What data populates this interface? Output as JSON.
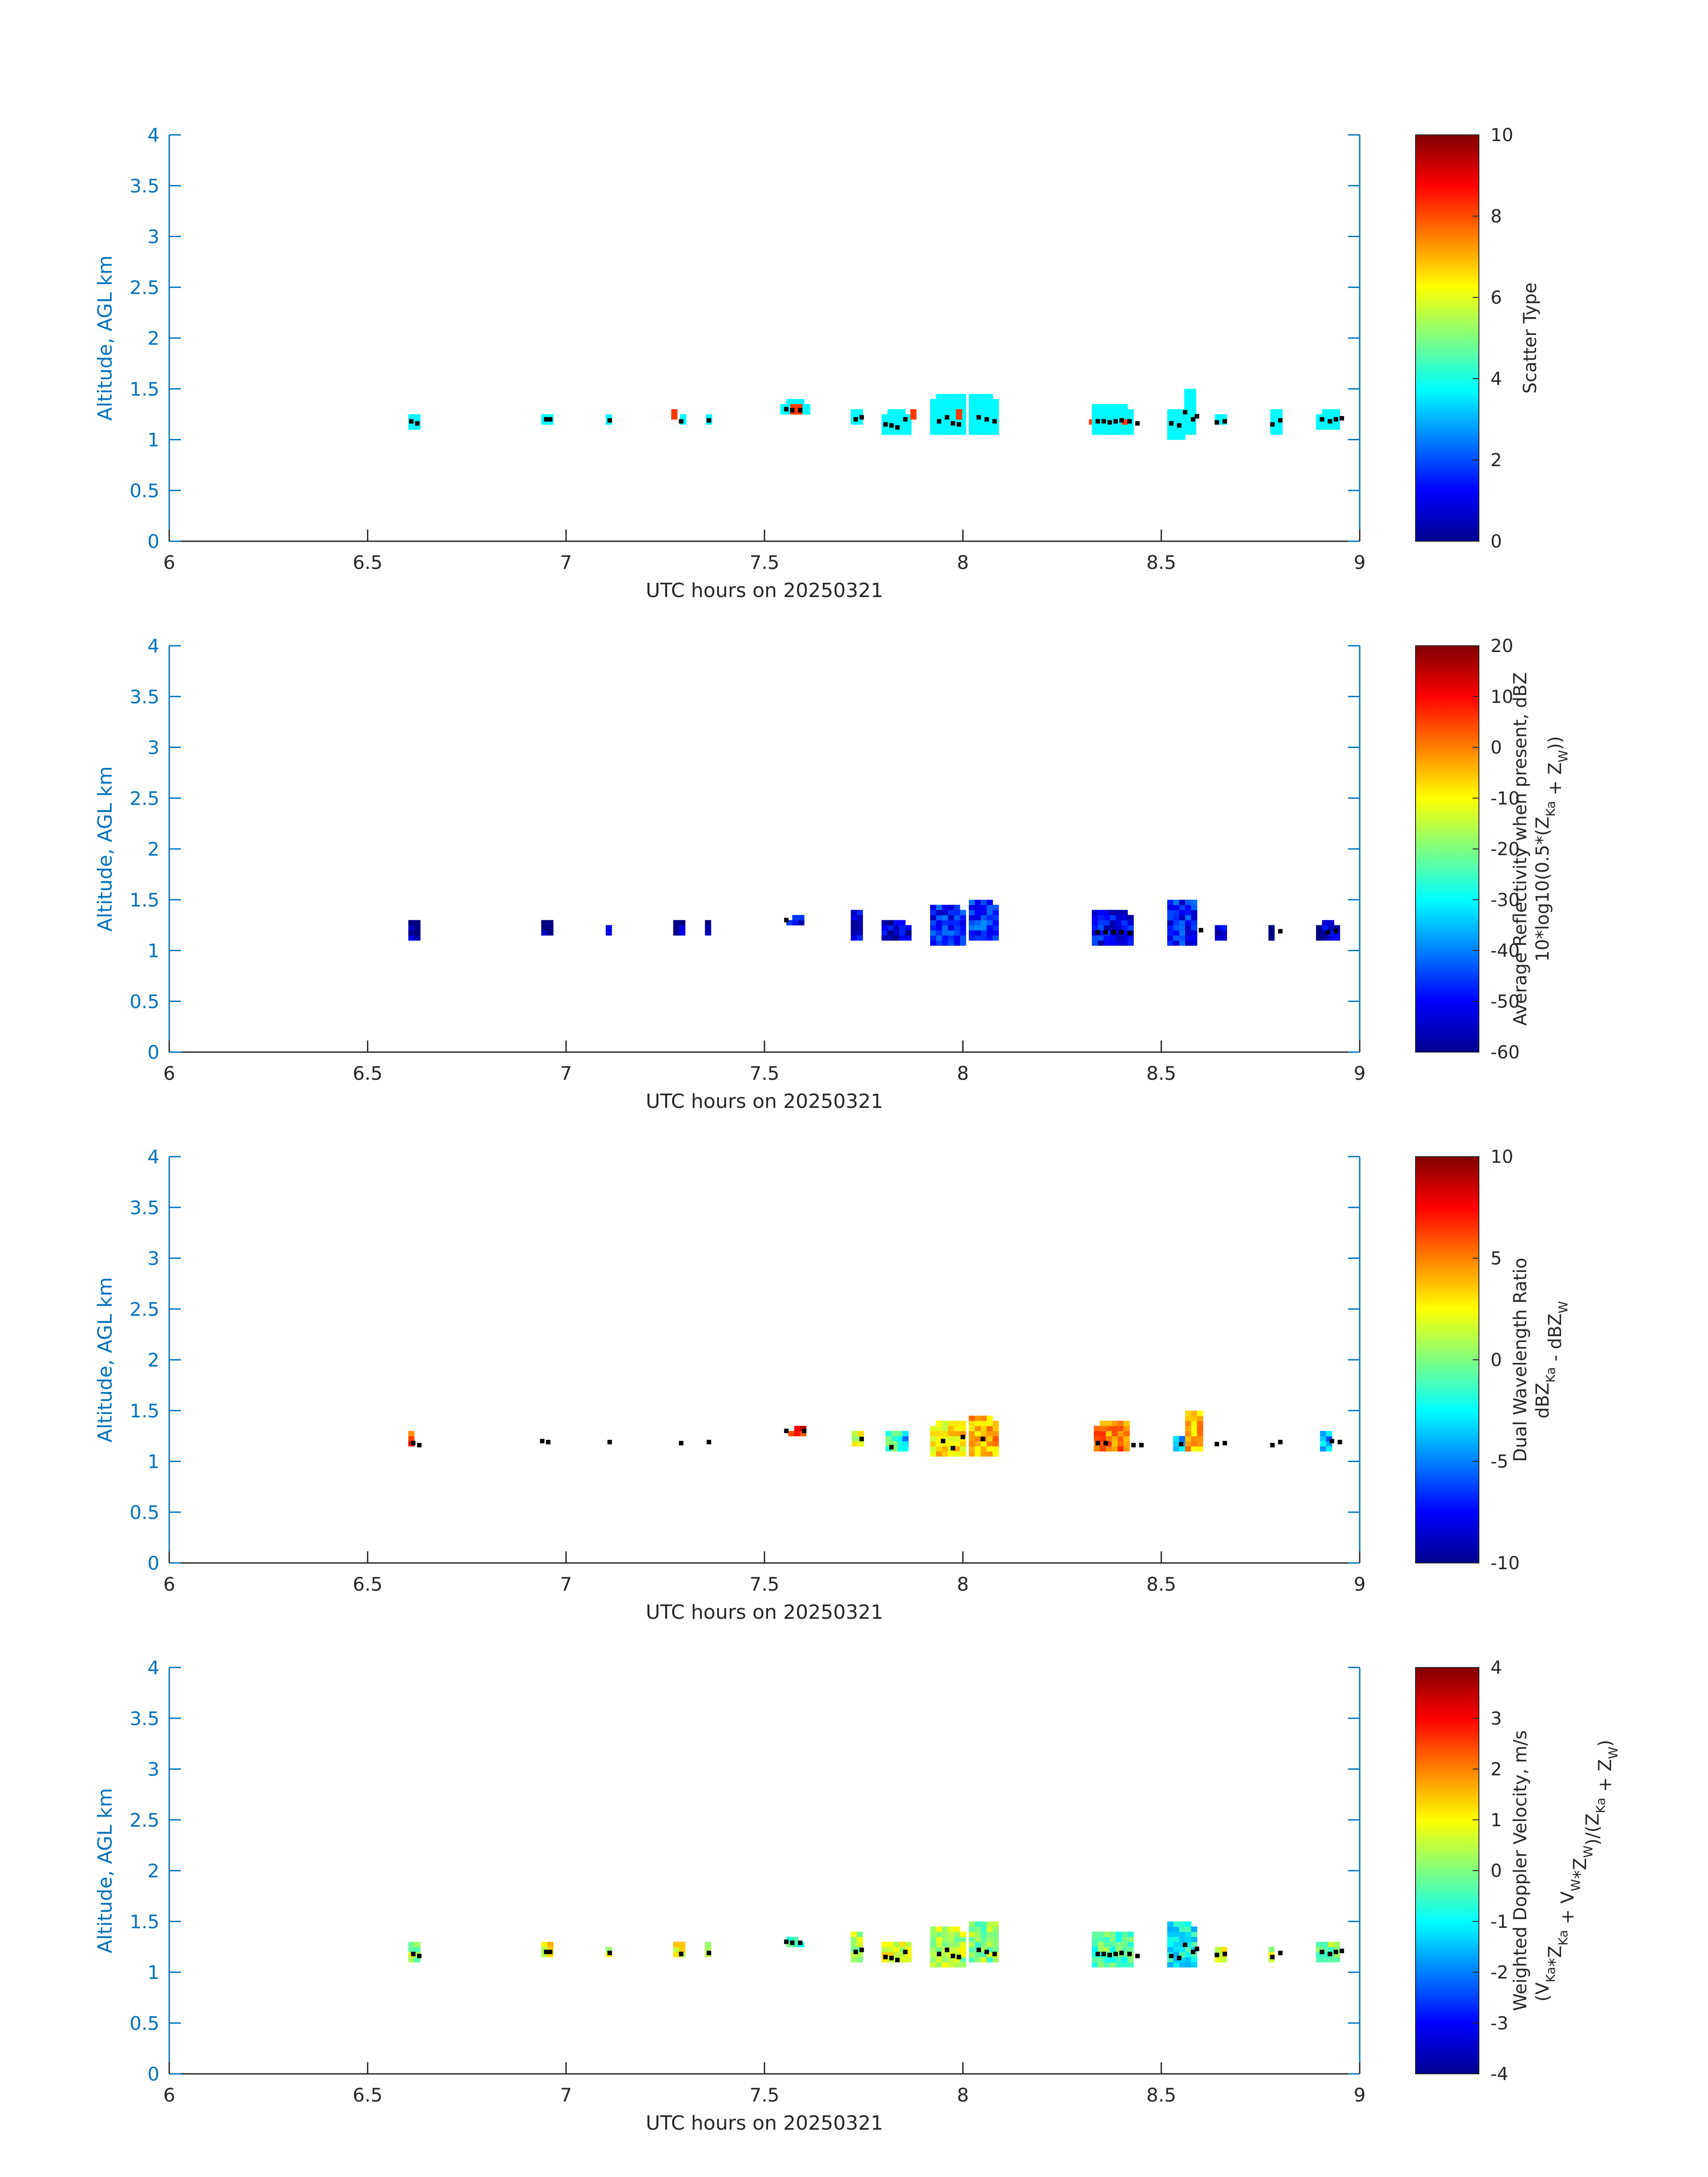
{
  "chart_data": [
    {
      "type": "heatmap",
      "field": "scatter_type",
      "xlabel": "UTC hours on 20250321",
      "ylabel": "Altitude, AGL km",
      "xlim": [
        6,
        9
      ],
      "ylim": [
        0,
        4
      ],
      "xticks": [
        "6",
        "6.5",
        "7",
        "7.5",
        "8",
        "8.5",
        "9"
      ],
      "yticks": [
        "0",
        "0.5",
        "1",
        "1.5",
        "2",
        "2.5",
        "3",
        "3.5",
        "4"
      ],
      "colorbar": {
        "label_lines": [
          "Scatter Type"
        ],
        "range": [
          0,
          10
        ],
        "ticks": [
          "0",
          "2",
          "4",
          "6",
          "8",
          "10"
        ]
      },
      "clusters": [
        {
          "x": 6.62,
          "w": 0.035,
          "y0": 1.1,
          "y1": 1.25,
          "v": 3.7
        },
        {
          "x": 6.955,
          "w": 0.035,
          "y0": 1.15,
          "y1": 1.25,
          "v": 3.7
        },
        {
          "x": 7.11,
          "w": 0.02,
          "y0": 1.15,
          "y1": 1.25,
          "v": 3.7
        },
        {
          "x": 7.275,
          "w": 0.02,
          "y0": 1.2,
          "y1": 1.3,
          "v": 8.2
        },
        {
          "x": 7.295,
          "w": 0.015,
          "y0": 1.15,
          "y1": 1.25,
          "v": 3.7
        },
        {
          "x": 7.36,
          "w": 0.015,
          "y0": 1.15,
          "y1": 1.25,
          "v": 3.7
        },
        {
          "x": 7.575,
          "w": 0.07,
          "y0": 1.25,
          "y1": 1.4,
          "v": 3.7
        },
        {
          "x": 7.58,
          "w": 0.03,
          "y0": 1.25,
          "y1": 1.35,
          "v": 8.2
        },
        {
          "x": 7.735,
          "w": 0.035,
          "y0": 1.15,
          "y1": 1.3,
          "v": 3.7
        },
        {
          "x": 7.83,
          "w": 0.07,
          "y0": 1.05,
          "y1": 1.3,
          "v": 3.7
        },
        {
          "x": 7.875,
          "w": 0.015,
          "y0": 1.2,
          "y1": 1.3,
          "v": 8.2
        },
        {
          "x": 7.96,
          "w": 0.085,
          "y0": 1.05,
          "y1": 1.45,
          "v": 3.7
        },
        {
          "x": 7.99,
          "w": 0.015,
          "y0": 1.2,
          "y1": 1.3,
          "v": 8.2
        },
        {
          "x": 8.05,
          "w": 0.07,
          "y0": 1.05,
          "y1": 1.45,
          "v": 3.7
        },
        {
          "x": 8.33,
          "w": 0.025,
          "y0": 1.15,
          "y1": 1.2,
          "v": 8.2
        },
        {
          "x": 8.38,
          "w": 0.11,
          "y0": 1.05,
          "y1": 1.35,
          "v": 3.7
        },
        {
          "x": 8.41,
          "w": 0.02,
          "y0": 1.15,
          "y1": 1.2,
          "v": 8.2
        },
        {
          "x": 8.535,
          "w": 0.04,
          "y0": 1.0,
          "y1": 1.3,
          "v": 3.7
        },
        {
          "x": 8.575,
          "w": 0.035,
          "y0": 1.05,
          "y1": 1.5,
          "v": 3.7
        },
        {
          "x": 8.65,
          "w": 0.03,
          "y0": 1.15,
          "y1": 1.25,
          "v": 3.7
        },
        {
          "x": 8.79,
          "w": 0.03,
          "y0": 1.05,
          "y1": 1.3,
          "v": 3.7
        },
        {
          "x": 8.92,
          "w": 0.06,
          "y0": 1.1,
          "y1": 1.3,
          "v": 3.7
        }
      ],
      "cloud_base_points": [
        [
          6.61,
          1.18
        ],
        [
          6.625,
          1.16
        ],
        [
          6.95,
          1.2
        ],
        [
          6.96,
          1.2
        ],
        [
          7.11,
          1.19
        ],
        [
          7.29,
          1.18
        ],
        [
          7.36,
          1.19
        ],
        [
          7.555,
          1.3
        ],
        [
          7.57,
          1.29
        ],
        [
          7.59,
          1.29
        ],
        [
          7.73,
          1.2
        ],
        [
          7.745,
          1.22
        ],
        [
          7.805,
          1.15
        ],
        [
          7.82,
          1.14
        ],
        [
          7.835,
          1.12
        ],
        [
          7.855,
          1.2
        ],
        [
          7.94,
          1.18
        ],
        [
          7.96,
          1.22
        ],
        [
          7.975,
          1.16
        ],
        [
          7.99,
          1.15
        ],
        [
          8.04,
          1.22
        ],
        [
          8.06,
          1.2
        ],
        [
          8.08,
          1.18
        ],
        [
          8.34,
          1.18
        ],
        [
          8.355,
          1.18
        ],
        [
          8.37,
          1.17
        ],
        [
          8.385,
          1.18
        ],
        [
          8.4,
          1.19
        ],
        [
          8.42,
          1.18
        ],
        [
          8.44,
          1.16
        ],
        [
          8.525,
          1.16
        ],
        [
          8.545,
          1.14
        ],
        [
          8.56,
          1.27
        ],
        [
          8.58,
          1.2
        ],
        [
          8.59,
          1.23
        ],
        [
          8.64,
          1.17
        ],
        [
          8.66,
          1.18
        ],
        [
          8.78,
          1.15
        ],
        [
          8.8,
          1.19
        ],
        [
          8.905,
          1.2
        ],
        [
          8.925,
          1.18
        ],
        [
          8.94,
          1.2
        ],
        [
          8.955,
          1.21
        ]
      ]
    },
    {
      "type": "heatmap",
      "field": "average_reflectivity",
      "xlabel": "UTC hours on 20250321",
      "ylabel": "Altitude, AGL km",
      "xlim": [
        6,
        9
      ],
      "ylim": [
        0,
        4
      ],
      "xticks": [
        "6",
        "6.5",
        "7",
        "7.5",
        "8",
        "8.5",
        "9"
      ],
      "yticks": [
        "0",
        "0.5",
        "1",
        "1.5",
        "2",
        "2.5",
        "3",
        "3.5",
        "4"
      ],
      "colorbar": {
        "label_lines": [
          "Average Reflectivity when present, dBZ",
          "10*log10(0.5*(Z_Ka + Z_W))"
        ],
        "range": [
          -60,
          20
        ],
        "ticks": [
          "-60",
          "-50",
          "-40",
          "-30",
          "-20",
          "-10",
          "0",
          "10",
          "20"
        ]
      },
      "clusters": [
        {
          "x": 6.62,
          "w": 0.035,
          "y0": 1.1,
          "y1": 1.3,
          "v": -57
        },
        {
          "x": 6.955,
          "w": 0.035,
          "y0": 1.15,
          "y1": 1.3,
          "v": -58
        },
        {
          "x": 7.11,
          "w": 0.02,
          "y0": 1.15,
          "y1": 1.25,
          "v": -56
        },
        {
          "x": 7.285,
          "w": 0.03,
          "y0": 1.15,
          "y1": 1.3,
          "v": -57
        },
        {
          "x": 7.36,
          "w": 0.02,
          "y0": 1.15,
          "y1": 1.3,
          "v": -57
        },
        {
          "x": 7.58,
          "w": 0.05,
          "y0": 1.25,
          "y1": 1.35,
          "v": -52
        },
        {
          "x": 7.735,
          "w": 0.035,
          "y0": 1.1,
          "y1": 1.4,
          "v": -53
        },
        {
          "x": 7.83,
          "w": 0.07,
          "y0": 1.1,
          "y1": 1.3,
          "v": -54
        },
        {
          "x": 7.96,
          "w": 0.085,
          "y0": 1.05,
          "y1": 1.45,
          "v": -48
        },
        {
          "x": 8.05,
          "w": 0.07,
          "y0": 1.1,
          "y1": 1.5,
          "v": -46
        },
        {
          "x": 8.375,
          "w": 0.1,
          "y0": 1.05,
          "y1": 1.4,
          "v": -50
        },
        {
          "x": 8.55,
          "w": 0.07,
          "y0": 1.05,
          "y1": 1.5,
          "v": -48
        },
        {
          "x": 8.65,
          "w": 0.03,
          "y0": 1.1,
          "y1": 1.25,
          "v": -55
        },
        {
          "x": 8.78,
          "w": 0.02,
          "y0": 1.1,
          "y1": 1.25,
          "v": -57
        },
        {
          "x": 8.92,
          "w": 0.06,
          "y0": 1.1,
          "y1": 1.3,
          "v": -55
        }
      ],
      "cloud_base_points": [
        [
          7.555,
          1.3
        ],
        [
          8.34,
          1.18
        ],
        [
          8.36,
          1.18
        ],
        [
          8.38,
          1.18
        ],
        [
          8.4,
          1.18
        ],
        [
          8.42,
          1.17
        ],
        [
          8.6,
          1.2
        ],
        [
          8.8,
          1.19
        ],
        [
          8.92,
          1.18
        ],
        [
          8.94,
          1.19
        ]
      ]
    },
    {
      "type": "heatmap",
      "field": "dual_wavelength_ratio",
      "xlabel": "UTC hours on 20250321",
      "ylabel": "Altitude, AGL km",
      "xlim": [
        6,
        9
      ],
      "ylim": [
        0,
        4
      ],
      "xticks": [
        "6",
        "6.5",
        "7",
        "7.5",
        "8",
        "8.5",
        "9"
      ],
      "yticks": [
        "0",
        "0.5",
        "1",
        "1.5",
        "2",
        "2.5",
        "3",
        "3.5",
        "4"
      ],
      "colorbar": {
        "label_lines": [
          "Dual Wavelength Ratio",
          "dBZ_Ka - dBZ_W"
        ],
        "range": [
          -10,
          10
        ],
        "ticks": [
          "-10",
          "-5",
          "0",
          "5",
          "10"
        ]
      },
      "clusters": [
        {
          "x": 6.61,
          "w": 0.015,
          "y0": 1.15,
          "y1": 1.3,
          "v": 6.5
        },
        {
          "x": 7.58,
          "w": 0.04,
          "y0": 1.25,
          "y1": 1.35,
          "v": 7.5
        },
        {
          "x": 7.735,
          "w": 0.03,
          "y0": 1.15,
          "y1": 1.3,
          "v": 1.5
        },
        {
          "x": 7.825,
          "w": 0.04,
          "y0": 1.1,
          "y1": 1.3,
          "v": -1
        },
        {
          "x": 7.855,
          "w": 0.015,
          "y0": 1.1,
          "y1": 1.3,
          "v": -4
        },
        {
          "x": 7.96,
          "w": 0.085,
          "y0": 1.05,
          "y1": 1.4,
          "v": 3
        },
        {
          "x": 8.05,
          "w": 0.07,
          "y0": 1.05,
          "y1": 1.45,
          "v": 4
        },
        {
          "x": 8.375,
          "w": 0.09,
          "y0": 1.1,
          "y1": 1.4,
          "v": 5
        },
        {
          "x": 8.545,
          "w": 0.03,
          "y0": 1.1,
          "y1": 1.25,
          "v": -4
        },
        {
          "x": 8.58,
          "w": 0.04,
          "y0": 1.1,
          "y1": 1.5,
          "v": 4
        },
        {
          "x": 8.915,
          "w": 0.03,
          "y0": 1.1,
          "y1": 1.3,
          "v": -4
        }
      ],
      "cloud_base_points": [
        [
          6.615,
          1.18
        ],
        [
          6.63,
          1.16
        ],
        [
          6.94,
          1.2
        ],
        [
          6.955,
          1.19
        ],
        [
          7.11,
          1.19
        ],
        [
          7.29,
          1.18
        ],
        [
          7.36,
          1.19
        ],
        [
          7.555,
          1.3
        ],
        [
          7.6,
          1.3
        ],
        [
          7.745,
          1.22
        ],
        [
          7.82,
          1.14
        ],
        [
          7.95,
          1.2
        ],
        [
          7.975,
          1.13
        ],
        [
          8.0,
          1.24
        ],
        [
          8.05,
          1.22
        ],
        [
          8.34,
          1.18
        ],
        [
          8.36,
          1.18
        ],
        [
          8.43,
          1.16
        ],
        [
          8.45,
          1.16
        ],
        [
          8.55,
          1.17
        ],
        [
          8.64,
          1.17
        ],
        [
          8.66,
          1.18
        ],
        [
          8.78,
          1.16
        ],
        [
          8.8,
          1.19
        ],
        [
          8.93,
          1.2
        ],
        [
          8.95,
          1.19
        ]
      ]
    },
    {
      "type": "heatmap",
      "field": "weighted_doppler_velocity",
      "xlabel": "UTC hours on 20250321",
      "ylabel": "Altitude, AGL km",
      "xlim": [
        6,
        9
      ],
      "ylim": [
        0,
        4
      ],
      "xticks": [
        "6",
        "6.5",
        "7",
        "7.5",
        "8",
        "8.5",
        "9"
      ],
      "yticks": [
        "0",
        "0.5",
        "1",
        "1.5",
        "2",
        "2.5",
        "3",
        "3.5",
        "4"
      ],
      "colorbar": {
        "label_lines": [
          "Weighted Doppler Velocity, m/s",
          "(V_Ka*Z_Ka + V_W*Z_W)/(Z_Ka + Z_W)"
        ],
        "range": [
          -4,
          4
        ],
        "ticks": [
          "-4",
          "-3",
          "-2",
          "-1",
          "0",
          "1",
          "2",
          "3",
          "4"
        ]
      },
      "clusters": [
        {
          "x": 6.62,
          "w": 0.035,
          "y0": 1.1,
          "y1": 1.3,
          "v": 0.2
        },
        {
          "x": 6.955,
          "w": 0.035,
          "y0": 1.15,
          "y1": 1.3,
          "v": 1.0
        },
        {
          "x": 7.11,
          "w": 0.02,
          "y0": 1.15,
          "y1": 1.25,
          "v": 0.6
        },
        {
          "x": 7.285,
          "w": 0.03,
          "y0": 1.15,
          "y1": 1.3,
          "v": 0.8
        },
        {
          "x": 7.36,
          "w": 0.02,
          "y0": 1.15,
          "y1": 1.3,
          "v": 0.6
        },
        {
          "x": 7.58,
          "w": 0.05,
          "y0": 1.25,
          "y1": 1.35,
          "v": -0.5
        },
        {
          "x": 7.735,
          "w": 0.035,
          "y0": 1.1,
          "y1": 1.4,
          "v": 0.3
        },
        {
          "x": 7.83,
          "w": 0.07,
          "y0": 1.1,
          "y1": 1.3,
          "v": 0.8
        },
        {
          "x": 7.96,
          "w": 0.085,
          "y0": 1.05,
          "y1": 1.45,
          "v": 0.4
        },
        {
          "x": 8.05,
          "w": 0.07,
          "y0": 1.1,
          "y1": 1.5,
          "v": 0.1
        },
        {
          "x": 8.375,
          "w": 0.1,
          "y0": 1.05,
          "y1": 1.4,
          "v": -0.4
        },
        {
          "x": 8.55,
          "w": 0.07,
          "y0": 1.05,
          "y1": 1.5,
          "v": -1.0
        },
        {
          "x": 8.65,
          "w": 0.03,
          "y0": 1.1,
          "y1": 1.25,
          "v": 0.6
        },
        {
          "x": 8.78,
          "w": 0.02,
          "y0": 1.1,
          "y1": 1.25,
          "v": 0.3
        },
        {
          "x": 8.92,
          "w": 0.06,
          "y0": 1.1,
          "y1": 1.3,
          "v": 0.0
        }
      ],
      "cloud_base_points": [
        [
          6.615,
          1.18
        ],
        [
          6.63,
          1.16
        ],
        [
          6.95,
          1.2
        ],
        [
          6.96,
          1.2
        ],
        [
          7.11,
          1.19
        ],
        [
          7.29,
          1.18
        ],
        [
          7.36,
          1.19
        ],
        [
          7.555,
          1.3
        ],
        [
          7.57,
          1.29
        ],
        [
          7.59,
          1.29
        ],
        [
          7.73,
          1.2
        ],
        [
          7.745,
          1.22
        ],
        [
          7.805,
          1.15
        ],
        [
          7.82,
          1.14
        ],
        [
          7.835,
          1.12
        ],
        [
          7.855,
          1.2
        ],
        [
          7.94,
          1.18
        ],
        [
          7.96,
          1.22
        ],
        [
          7.975,
          1.16
        ],
        [
          7.99,
          1.15
        ],
        [
          8.04,
          1.22
        ],
        [
          8.06,
          1.2
        ],
        [
          8.08,
          1.18
        ],
        [
          8.34,
          1.18
        ],
        [
          8.355,
          1.18
        ],
        [
          8.37,
          1.17
        ],
        [
          8.385,
          1.18
        ],
        [
          8.4,
          1.19
        ],
        [
          8.42,
          1.18
        ],
        [
          8.44,
          1.16
        ],
        [
          8.525,
          1.16
        ],
        [
          8.545,
          1.14
        ],
        [
          8.56,
          1.27
        ],
        [
          8.58,
          1.2
        ],
        [
          8.59,
          1.23
        ],
        [
          8.64,
          1.17
        ],
        [
          8.66,
          1.18
        ],
        [
          8.78,
          1.15
        ],
        [
          8.8,
          1.19
        ],
        [
          8.905,
          1.2
        ],
        [
          8.925,
          1.18
        ],
        [
          8.94,
          1.2
        ],
        [
          8.955,
          1.21
        ]
      ]
    }
  ]
}
